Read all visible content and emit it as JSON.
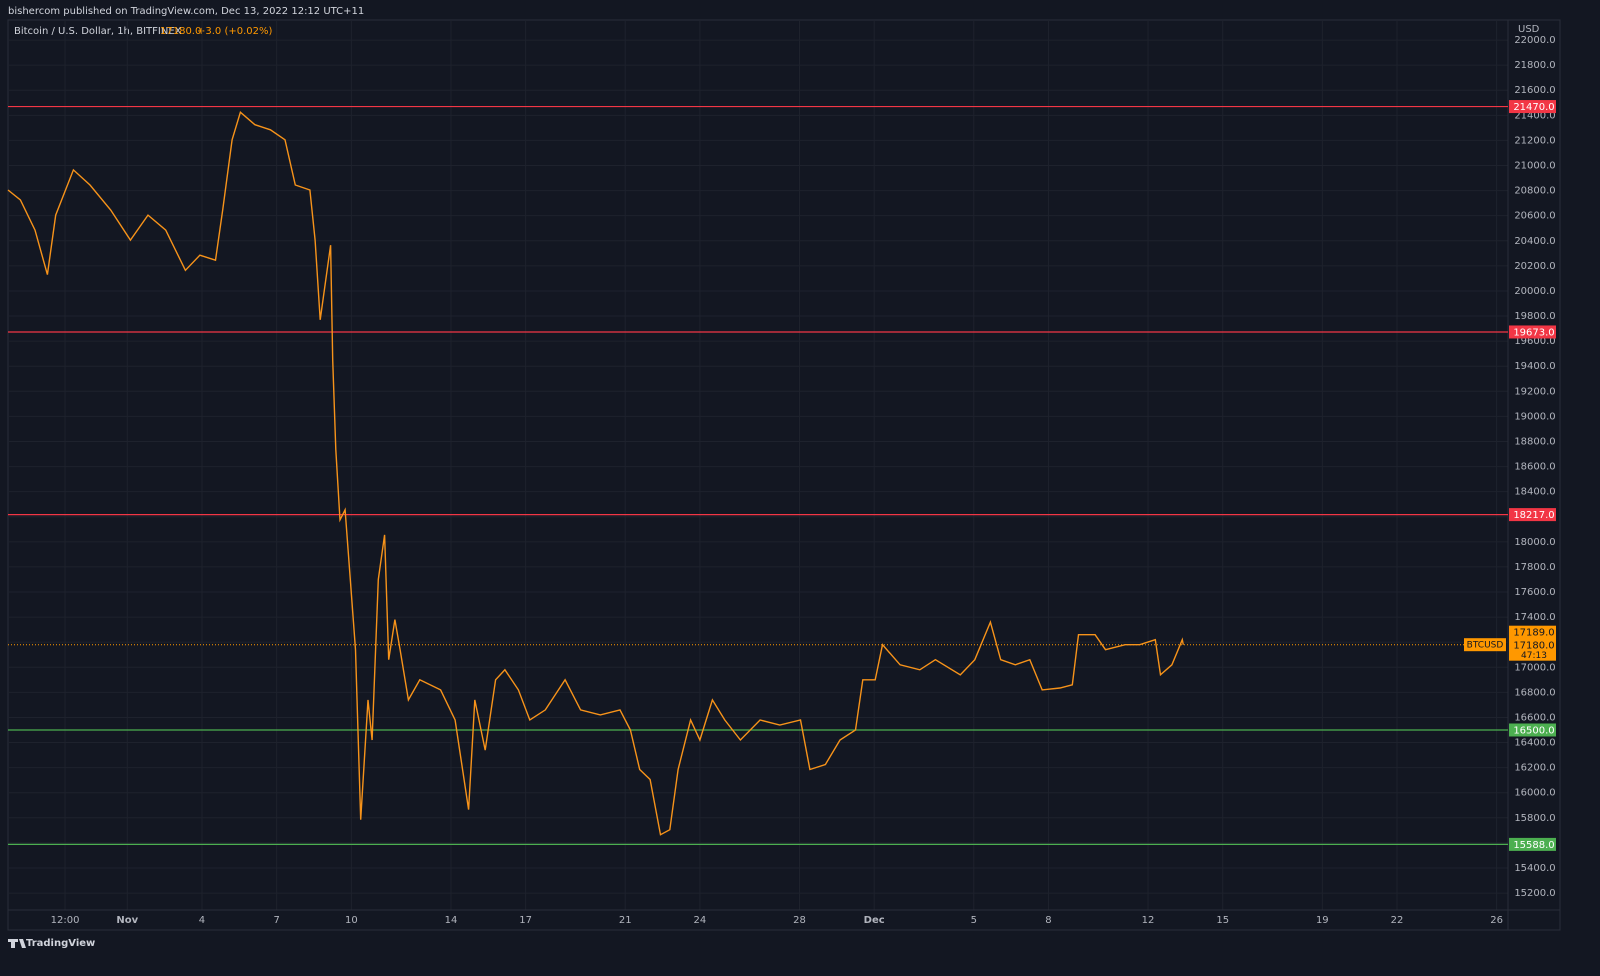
{
  "header": {
    "text": "bishercom published on TradingView.com, Dec 13, 2022 12:12 UTC+11"
  },
  "footer": {
    "brand": "TradingView"
  },
  "chart_data": {
    "type": "line",
    "title": "Bitcoin / U.S. Dollar, 1h, BITFINEX",
    "change_label": "+3.0 (+0.02%)",
    "y_axis_label": "USD",
    "x": [
      "2022-10-27T05:00",
      "2022-10-27T17:00",
      "2022-10-28T07:00",
      "2022-10-28T19:00",
      "2022-10-29T03:00",
      "2022-10-29T20:00",
      "2022-10-30T12:00",
      "2022-10-31T08:00",
      "2022-11-01T03:00",
      "2022-11-01T20:00",
      "2022-11-02T13:00",
      "2022-11-03T08:00",
      "2022-11-03T22:00",
      "2022-11-04T13:00",
      "2022-11-04T20:00",
      "2022-11-05T05:00",
      "2022-11-05T13:00",
      "2022-11-06T03:00",
      "2022-11-06T18:00",
      "2022-11-07T08:00",
      "2022-11-07T18:00",
      "2022-11-08T08:00",
      "2022-11-08T13:00",
      "2022-11-08T18:00",
      "2022-11-09T04:00",
      "2022-11-09T06:00",
      "2022-11-09T09:00",
      "2022-11-09T13:00",
      "2022-11-09T18:00",
      "2022-11-09T23:00",
      "2022-11-10T04:00",
      "2022-11-10T09:00",
      "2022-11-10T16:00",
      "2022-11-10T20:00",
      "2022-11-11T02:00",
      "2022-11-11T08:00",
      "2022-11-11T12:00",
      "2022-11-11T18:00",
      "2022-11-11T23:00",
      "2022-11-12T07:00",
      "2022-11-12T18:00",
      "2022-11-13T14:00",
      "2022-11-14T04:00",
      "2022-11-14T17:00",
      "2022-11-14T23:00",
      "2022-11-15T09:00",
      "2022-11-15T19:00",
      "2022-11-16T04:00",
      "2022-11-16T17:00",
      "2022-11-17T04:00",
      "2022-11-17T19:00",
      "2022-11-18T14:00",
      "2022-11-19T05:00",
      "2022-11-20T00:00",
      "2022-11-20T19:00",
      "2022-11-21T05:00",
      "2022-11-21T14:00",
      "2022-11-22T00:00",
      "2022-11-22T10:00",
      "2022-11-22T19:00",
      "2022-11-23T03:00",
      "2022-11-23T15:00",
      "2022-11-24T00:00",
      "2022-11-24T12:00",
      "2022-11-25T00:00",
      "2022-11-25T15:00",
      "2022-11-26T10:00",
      "2022-11-27T05:00",
      "2022-11-28T01:00",
      "2022-11-28T10:00",
      "2022-11-29T01:00",
      "2022-11-29T15:00",
      "2022-11-30T06:00",
      "2022-11-30T13:00",
      "2022-12-01T01:00",
      "2022-12-01T08:00",
      "2022-12-02T01:00",
      "2022-12-02T20:00",
      "2022-12-03T11:00",
      "2022-12-04T11:00",
      "2022-12-05T01:00",
      "2022-12-05T16:00",
      "2022-12-06T02:00",
      "2022-12-06T16:00",
      "2022-12-07T06:00",
      "2022-12-07T18:00",
      "2022-12-08T11:00",
      "2022-12-08T23:00",
      "2022-12-09T05:00",
      "2022-12-09T21:00",
      "2022-12-10T07:00",
      "2022-12-11T02:00",
      "2022-12-11T16:00",
      "2022-12-12T07:00",
      "2022-12-12T12:00",
      "2022-12-12T23:00",
      "2022-12-13T09:00",
      "2022-12-13T10:00"
    ],
    "series": [
      {
        "name": "BTCUSD",
        "color": "#f7931a",
        "values": [
          20805,
          20725,
          20485,
          20130,
          20605,
          20965,
          20845,
          20645,
          20405,
          20605,
          20485,
          20165,
          20285,
          20245,
          20645,
          21205,
          21425,
          21325,
          21285,
          21205,
          20845,
          20805,
          20405,
          19770,
          20365,
          19450,
          18735,
          18175,
          18255,
          17700,
          17140,
          15785,
          16740,
          16420,
          17700,
          18055,
          17060,
          17380,
          17140,
          16740,
          16900,
          16820,
          16580,
          15865,
          16740,
          16340,
          16900,
          16980,
          16820,
          16580,
          16660,
          16900,
          16660,
          16620,
          16660,
          16500,
          16185,
          16105,
          15665,
          15705,
          16185,
          16580,
          16420,
          16740,
          16580,
          16420,
          16580,
          16540,
          16580,
          16185,
          16225,
          16420,
          16500,
          16900,
          16900,
          17180,
          17020,
          16980,
          17060,
          16940,
          17060,
          17360,
          17060,
          17020,
          17060,
          16820,
          16835,
          16860,
          17260,
          17260,
          17140,
          17180,
          17180,
          17220,
          16940,
          17020,
          17220,
          17180
        ]
      }
    ],
    "xlim": [
      "2022-10-27T05:00",
      "2022-12-26T11:00"
    ],
    "ylim": [
      15065,
      22160
    ],
    "xticks": [
      {
        "value": "2022-10-29T12:00",
        "label": "12:00"
      },
      {
        "value": "2022-11-01T00:00",
        "label": "Nov"
      },
      {
        "value": "2022-11-04T00:00",
        "label": "4"
      },
      {
        "value": "2022-11-07T00:00",
        "label": "7"
      },
      {
        "value": "2022-11-10T00:00",
        "label": "10"
      },
      {
        "value": "2022-11-14T00:00",
        "label": "14"
      },
      {
        "value": "2022-11-17T00:00",
        "label": "17"
      },
      {
        "value": "2022-11-21T00:00",
        "label": "21"
      },
      {
        "value": "2022-11-24T00:00",
        "label": "24"
      },
      {
        "value": "2022-11-28T00:00",
        "label": "28"
      },
      {
        "value": "2022-12-01T00:00",
        "label": "Dec"
      },
      {
        "value": "2022-12-05T00:00",
        "label": "5"
      },
      {
        "value": "2022-12-08T00:00",
        "label": "8"
      },
      {
        "value": "2022-12-12T00:00",
        "label": "12"
      },
      {
        "value": "2022-12-15T00:00",
        "label": "15"
      },
      {
        "value": "2022-12-19T00:00",
        "label": "19"
      },
      {
        "value": "2022-12-22T00:00",
        "label": "22"
      },
      {
        "value": "2022-12-26T00:00",
        "label": "26"
      }
    ],
    "yticks": [
      {
        "value": 15200,
        "label": "15200.0"
      },
      {
        "value": 15400,
        "label": "15400.0"
      },
      {
        "value": 15600,
        "label": "15600.0"
      },
      {
        "value": 15800,
        "label": "15800.0"
      },
      {
        "value": 16000,
        "label": "16000.0"
      },
      {
        "value": 16200,
        "label": "16200.0"
      },
      {
        "value": 16400,
        "label": "16400.0"
      },
      {
        "value": 16600,
        "label": "16600.0"
      },
      {
        "value": 16800,
        "label": "16800.0"
      },
      {
        "value": 17000,
        "label": "17000.0"
      },
      {
        "value": 17200,
        "label": "17200.0"
      },
      {
        "value": 17400,
        "label": "17400.0"
      },
      {
        "value": 17600,
        "label": "17600.0"
      },
      {
        "value": 17800,
        "label": "17800.0"
      },
      {
        "value": 18000,
        "label": "18000.0"
      },
      {
        "value": 18200,
        "label": "18200.0"
      },
      {
        "value": 18400,
        "label": "18400.0"
      },
      {
        "value": 18600,
        "label": "18600.0"
      },
      {
        "value": 18800,
        "label": "18800.0"
      },
      {
        "value": 19000,
        "label": "19000.0"
      },
      {
        "value": 19200,
        "label": "19200.0"
      },
      {
        "value": 19400,
        "label": "19400.0"
      },
      {
        "value": 19600,
        "label": "19600.0"
      },
      {
        "value": 19800,
        "label": "19800.0"
      },
      {
        "value": 20000,
        "label": "20000.0"
      },
      {
        "value": 20200,
        "label": "20200.0"
      },
      {
        "value": 20400,
        "label": "20400.0"
      },
      {
        "value": 20600,
        "label": "20600.0"
      },
      {
        "value": 20800,
        "label": "20800.0"
      },
      {
        "value": 21000,
        "label": "21000.0"
      },
      {
        "value": 21200,
        "label": "21200.0"
      },
      {
        "value": 21400,
        "label": "21400.0"
      },
      {
        "value": 21600,
        "label": "21600.0"
      },
      {
        "value": 21800,
        "label": "21800.0"
      },
      {
        "value": 22000,
        "label": "22000.0"
      }
    ],
    "grid": true,
    "levels": [
      {
        "value": 21470,
        "label": "21470.0",
        "color": "#f23645"
      },
      {
        "value": 19673,
        "label": "19673.0",
        "color": "#f23645"
      },
      {
        "value": 18217,
        "label": "18217.0",
        "color": "#f23645"
      },
      {
        "value": 16500,
        "label": "16500.0",
        "color": "#4caf50"
      },
      {
        "value": 15588,
        "label": "15588.0",
        "color": "#4caf50"
      }
    ],
    "price_line": {
      "value": 17180,
      "label": "17180.0",
      "color": "#ff9800",
      "high": {
        "value": 17189,
        "label": "17189.0"
      },
      "countdown": "47:13"
    }
  }
}
